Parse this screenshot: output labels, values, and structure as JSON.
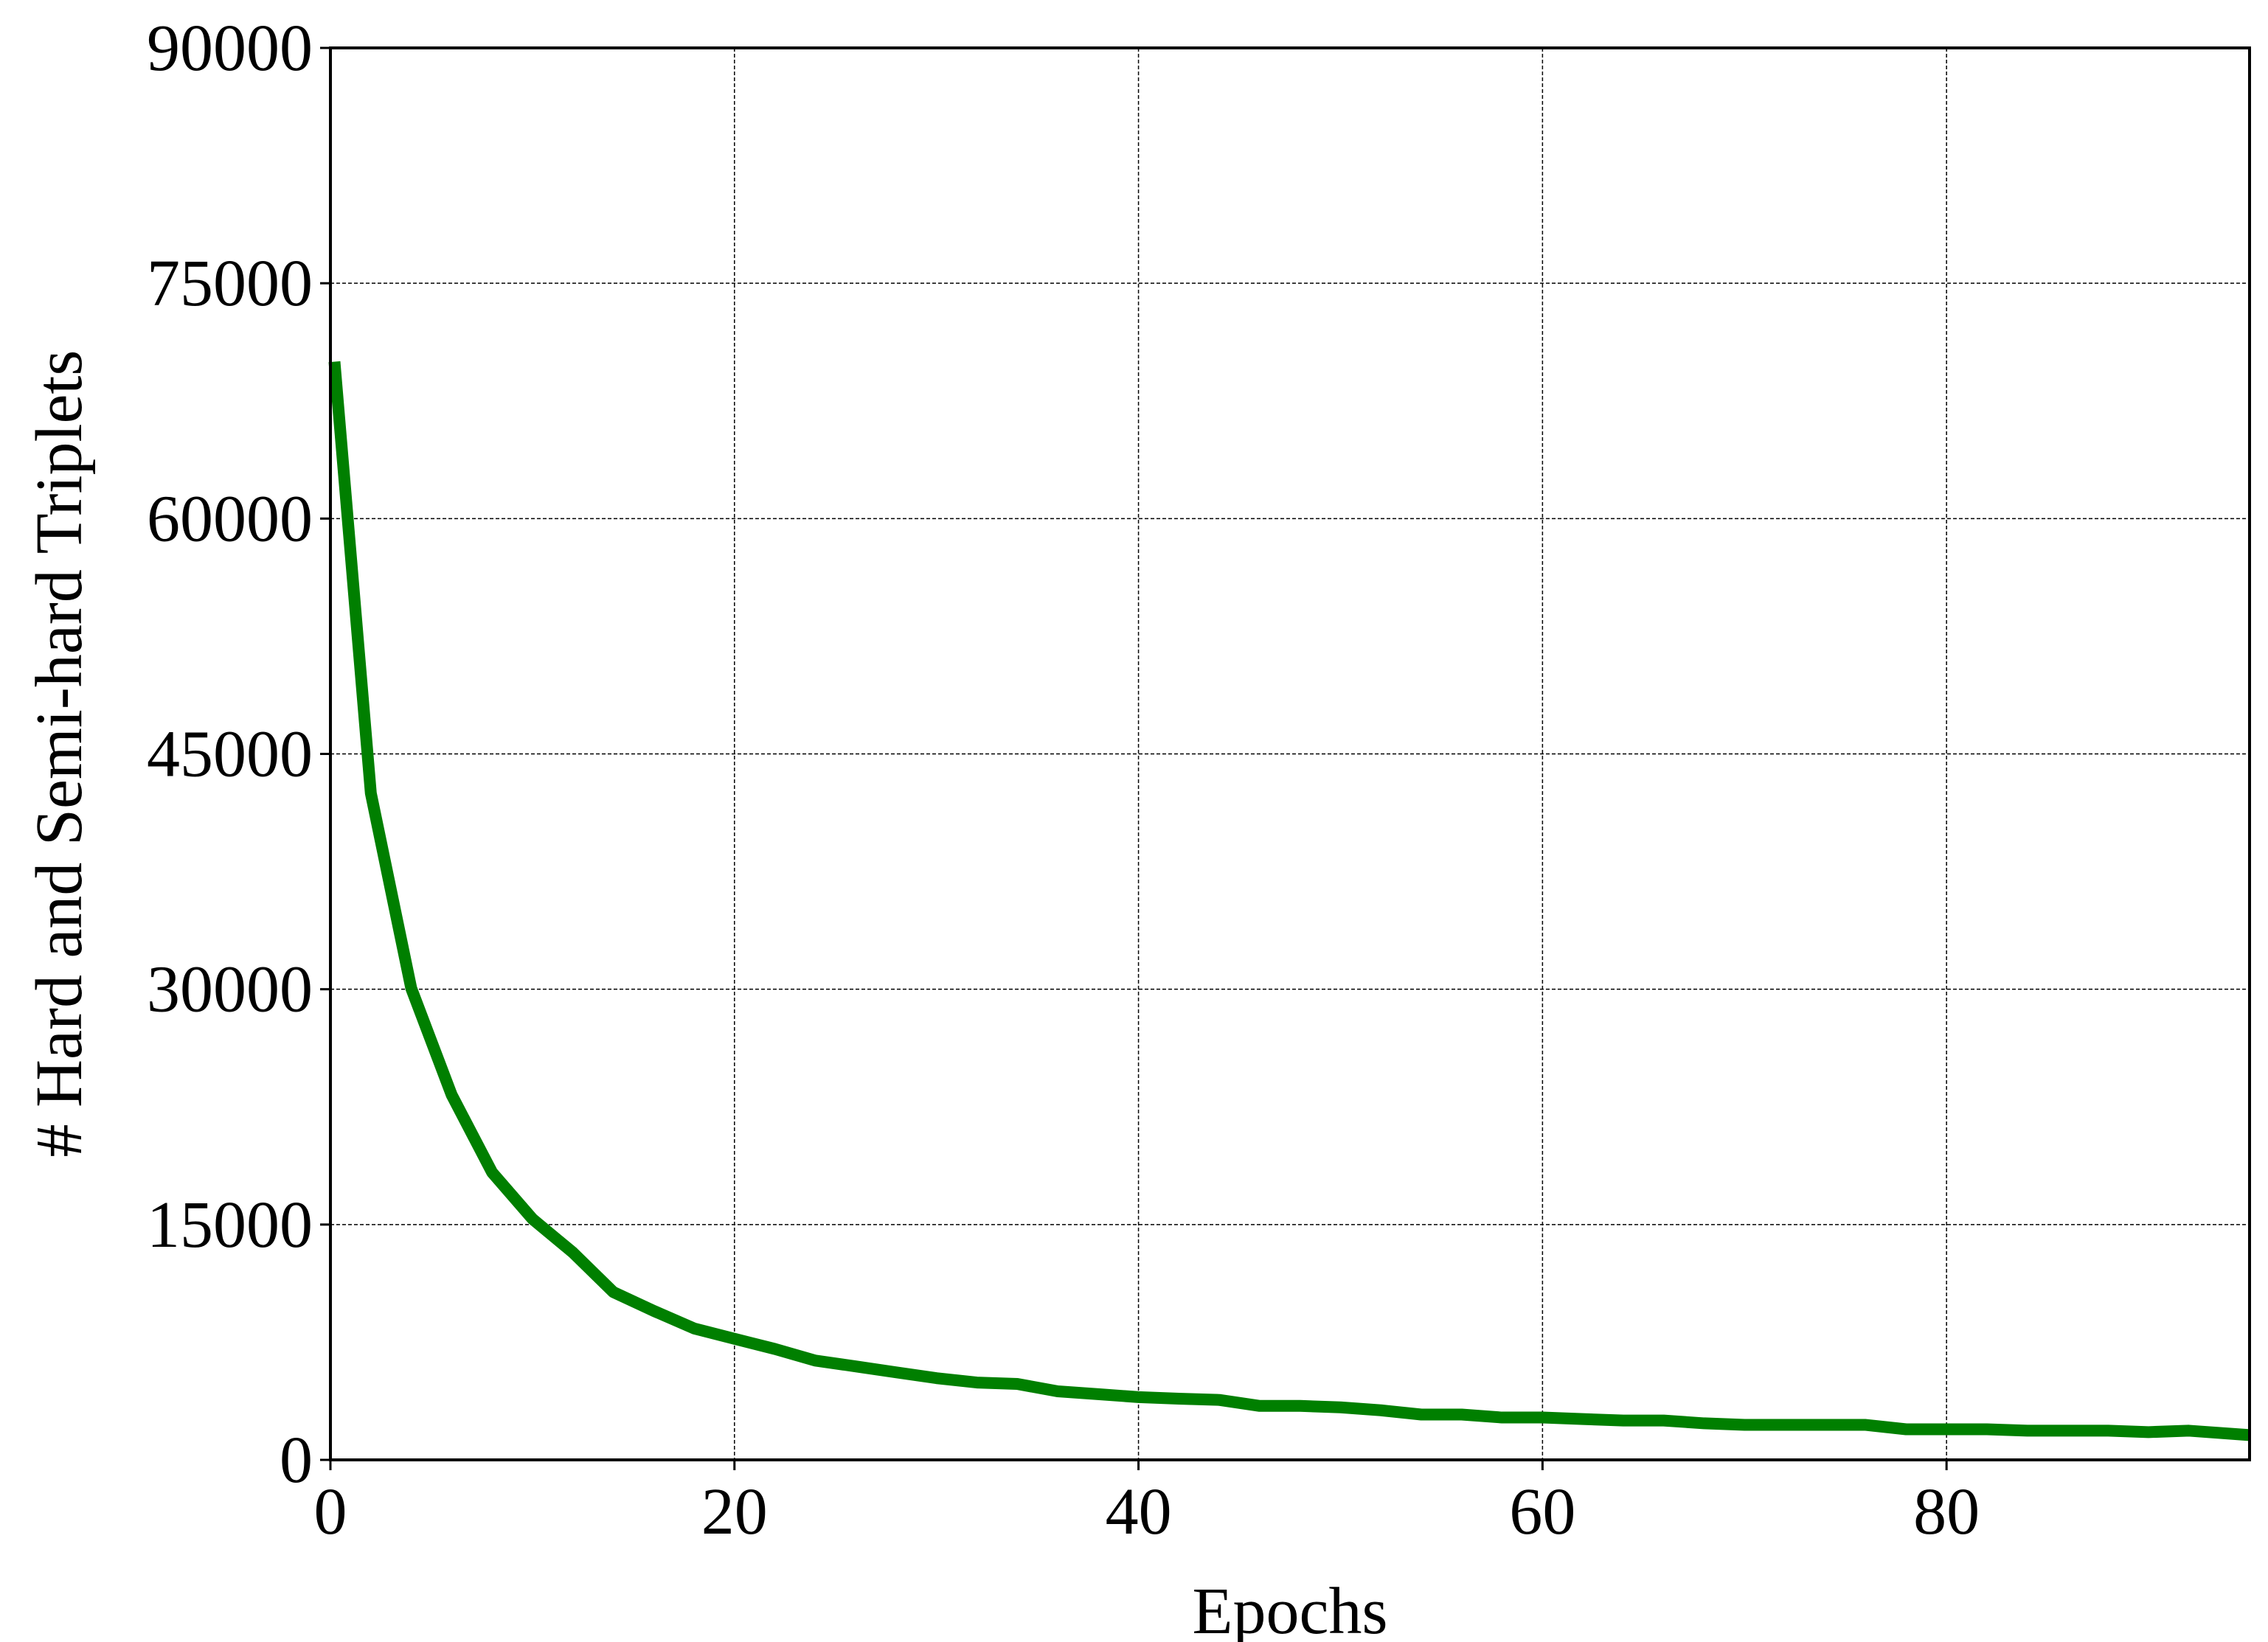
{
  "chart_data": {
    "type": "line",
    "xlabel": "Epochs",
    "ylabel": "# Hard and Semi-hard Triplets",
    "x": [
      0.2,
      2,
      4,
      6,
      8,
      10,
      12,
      14,
      16,
      18,
      20,
      22,
      24,
      26,
      28,
      30,
      32,
      34,
      36,
      38,
      40,
      42,
      44,
      46,
      48,
      50,
      52,
      54,
      56,
      58,
      60,
      62,
      64,
      66,
      68,
      70,
      72,
      74,
      76,
      78,
      80,
      82,
      84,
      86,
      88,
      90,
      92,
      95
    ],
    "series": [
      {
        "color": "#007f00",
        "values": [
          70000,
          42500,
          30060,
          23270,
          18330,
          15360,
          13220,
          10700,
          9500,
          8380,
          7720,
          7070,
          6330,
          5960,
          5580,
          5210,
          4930,
          4840,
          4370,
          4190,
          4000,
          3900,
          3820,
          3440,
          3440,
          3350,
          3160,
          2890,
          2890,
          2700,
          2700,
          2600,
          2510,
          2510,
          2330,
          2230,
          2230,
          2230,
          2230,
          1950,
          1950,
          1950,
          1860,
          1860,
          1860,
          1770,
          1860,
          1580
        ]
      }
    ],
    "xlim": [
      0,
      95
    ],
    "xticks": [
      0,
      20,
      40,
      60,
      80
    ],
    "ylim": [
      0,
      90000
    ],
    "yticks": [
      0,
      15000,
      30000,
      45000,
      60000,
      75000,
      90000
    ],
    "grid": true
  }
}
